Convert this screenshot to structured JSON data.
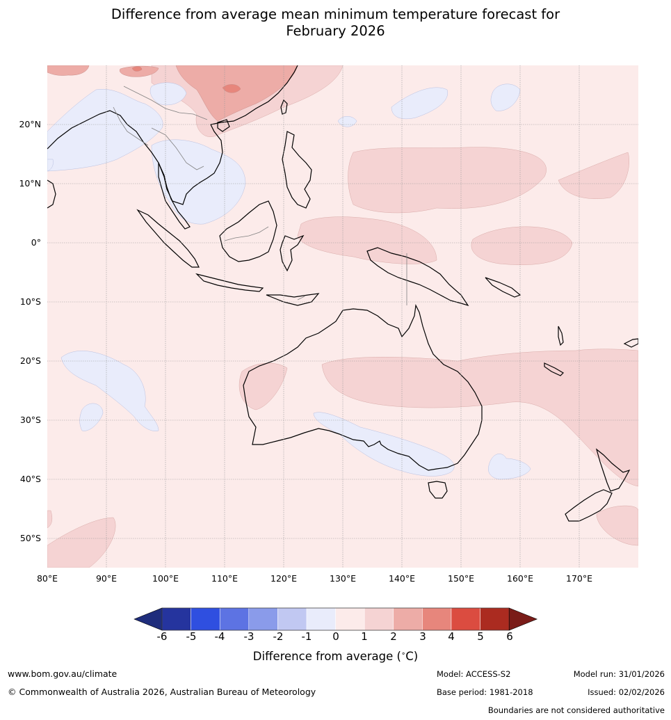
{
  "title": {
    "line1": "Difference from average mean minimum temperature forecast for",
    "line2": "February 2026"
  },
  "map": {
    "region": "Indo-Pacific and Australia",
    "lon_range": [
      80,
      180
    ],
    "lat_range": [
      -55,
      30
    ],
    "lat_labels": [
      "20°N",
      "10°N",
      "0°",
      "10°S",
      "20°S",
      "30°S",
      "40°S",
      "50°S"
    ],
    "lon_labels": [
      "80°E",
      "90°E",
      "100°E",
      "110°E",
      "120°E",
      "130°E",
      "140°E",
      "150°E",
      "160°E",
      "170°E"
    ]
  },
  "colorbar": {
    "ticks": [
      "-6",
      "-5",
      "-4",
      "-3",
      "-2",
      "-1",
      "0",
      "1",
      "2",
      "3",
      "4",
      "5",
      "6"
    ],
    "colors": [
      "#25349e",
      "#2f4fe0",
      "#5d73e3",
      "#8a9bea",
      "#c1c8f2",
      "#e9ecfb",
      "#fcebea",
      "#f5d3d3",
      "#edaca7",
      "#e7867c",
      "#db4c40",
      "#ab2b20"
    ],
    "under_color": "#1f2d7c",
    "over_color": "#7a1c18",
    "label": "Difference from average (",
    "label_unit": "C)",
    "degree": "∘"
  },
  "footer": {
    "website": "www.bom.gov.au/climate",
    "copyright": "© Commonwealth of Australia 2026, Australian Bureau of Meteorology",
    "model": "Model: ACCESS-S2",
    "base_period": "Base period: 1981-2018",
    "model_run": "Model run: 31/01/2026",
    "issued": "Issued: 02/02/2026",
    "disclaimer": "Boundaries are not considered authoritative"
  }
}
